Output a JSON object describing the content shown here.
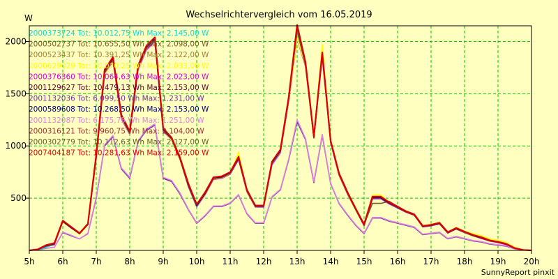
{
  "chart_data": {
    "type": "line",
    "title": "Wechselrichtervergleich vom 16.05.2019",
    "ylabel": "W",
    "footer": "SunnyReport pinxit",
    "xlim": [
      5,
      20
    ],
    "ylim": [
      0,
      2150
    ],
    "xticks": [
      "5h",
      "6h",
      "7h",
      "8h",
      "9h",
      "10h",
      "11h",
      "12h",
      "13h",
      "14h",
      "15h",
      "16h",
      "17h",
      "18h",
      "19h",
      "20h"
    ],
    "yticks": [
      500,
      1000,
      1500,
      2000
    ],
    "grid": true,
    "legend_position": "top-left",
    "x": [
      5.0,
      5.25,
      5.5,
      5.75,
      6.0,
      6.25,
      6.5,
      6.75,
      7.0,
      7.25,
      7.5,
      7.75,
      8.0,
      8.25,
      8.5,
      8.75,
      9.0,
      9.25,
      9.5,
      9.75,
      10.0,
      10.25,
      10.5,
      10.75,
      11.0,
      11.25,
      11.5,
      11.75,
      12.0,
      12.25,
      12.5,
      12.75,
      13.0,
      13.25,
      13.5,
      13.75,
      14.0,
      14.25,
      14.5,
      14.75,
      15.0,
      15.25,
      15.5,
      15.75,
      16.0,
      16.25,
      16.5,
      16.75,
      17.0,
      17.25,
      17.5,
      17.75,
      18.0,
      18.25,
      18.5,
      18.75,
      19.0,
      19.25,
      19.5,
      19.75,
      20.0
    ],
    "series": [
      {
        "label": "2000373724 Tot: 10.012,75 Wh Max: 2.145,00 W",
        "color": "#00e0e0",
        "values": [
          0,
          5,
          30,
          60,
          280,
          220,
          160,
          250,
          900,
          1700,
          1830,
          1280,
          1120,
          1750,
          1950,
          2000,
          1150,
          1070,
          880,
          620,
          420,
          540,
          690,
          700,
          740,
          880,
          570,
          420,
          420,
          830,
          950,
          1450,
          2100,
          1780,
          1080,
          1880,
          1040,
          730,
          550,
          390,
          240,
          500,
          500,
          450,
          410,
          370,
          340,
          230,
          240,
          260,
          170,
          210,
          175,
          140,
          120,
          90,
          80,
          60,
          20,
          5,
          0
        ]
      },
      {
        "label": "2000502737 Tot: 10.655,50 Wh Max: 2.098,00 W",
        "color": "#7a5a20",
        "values": [
          0,
          10,
          50,
          70,
          280,
          220,
          160,
          250,
          920,
          1720,
          1840,
          1300,
          1140,
          1760,
          1950,
          2030,
          1170,
          1080,
          890,
          640,
          440,
          560,
          700,
          710,
          750,
          880,
          580,
          430,
          430,
          850,
          960,
          1470,
          2098,
          1780,
          1090,
          1880,
          1050,
          740,
          560,
          400,
          250,
          450,
          450,
          470,
          420,
          370,
          340,
          235,
          245,
          260,
          175,
          210,
          180,
          145,
          120,
          95,
          80,
          60,
          20,
          5,
          0
        ]
      },
      {
        "label": "2000523437 Tot: 10.391,25 Wh Max: 2.122,00 W",
        "color": "#a08030",
        "values": [
          0,
          8,
          45,
          65,
          280,
          225,
          165,
          255,
          910,
          1710,
          1835,
          1290,
          1135,
          1755,
          1945,
          2020,
          1165,
          1075,
          885,
          630,
          430,
          550,
          695,
          705,
          745,
          890,
          575,
          425,
          425,
          845,
          955,
          1460,
          2110,
          1790,
          1085,
          1880,
          1045,
          735,
          555,
          395,
          245,
          510,
          510,
          455,
          415,
          372,
          342,
          232,
          242,
          258,
          172,
          212,
          178,
          150,
          130,
          100,
          85,
          65,
          25,
          5,
          0
        ]
      },
      {
        "label": "2000629029 Tot: 10.070,25 Wh Max: 2.033,00 W",
        "color": "#ffff00",
        "values": [
          0,
          6,
          40,
          60,
          270,
          215,
          155,
          245,
          890,
          1690,
          1820,
          1270,
          1115,
          1740,
          1930,
          2033,
          1150,
          1060,
          870,
          620,
          420,
          535,
          685,
          695,
          735,
          940,
          565,
          420,
          420,
          830,
          945,
          1440,
          2030,
          1770,
          1075,
          1970,
          1040,
          725,
          545,
          385,
          240,
          530,
          530,
          460,
          420,
          380,
          345,
          235,
          250,
          270,
          175,
          220,
          185,
          160,
          140,
          110,
          100,
          75,
          30,
          5,
          0
        ]
      },
      {
        "label": "2000376360 Tot: 10.064,63 Wh Max: 2.023,00 W",
        "color": "#e000e0",
        "values": [
          0,
          5,
          35,
          55,
          275,
          215,
          160,
          250,
          880,
          1690,
          1810,
          1260,
          1110,
          1730,
          1920,
          2000,
          1140,
          1060,
          870,
          610,
          415,
          530,
          680,
          690,
          730,
          870,
          560,
          415,
          415,
          820,
          935,
          1430,
          2023,
          1760,
          1075,
          1850,
          1030,
          720,
          540,
          385,
          235,
          495,
          495,
          445,
          405,
          365,
          335,
          225,
          235,
          255,
          165,
          205,
          170,
          140,
          115,
          90,
          75,
          55,
          20,
          5,
          0
        ]
      },
      {
        "label": "2001129627 Tot: 10.479,13 Wh Max: 2.153,00 W",
        "color": "#600030",
        "values": [
          0,
          10,
          50,
          70,
          285,
          225,
          165,
          255,
          920,
          1730,
          1850,
          1300,
          1140,
          1770,
          1960,
          2040,
          1170,
          1080,
          890,
          640,
          440,
          555,
          700,
          710,
          750,
          900,
          580,
          430,
          430,
          850,
          965,
          1470,
          2153,
          1800,
          1090,
          1890,
          1050,
          740,
          560,
          400,
          250,
          515,
          515,
          460,
          420,
          375,
          345,
          235,
          245,
          265,
          175,
          215,
          180,
          145,
          125,
          95,
          80,
          60,
          20,
          5,
          0
        ]
      },
      {
        "label": "2001132036 Tot: 6.099,50 Wh Max: 1.231,00 W",
        "color": "#7030a0",
        "values": [
          0,
          5,
          20,
          30,
          170,
          140,
          110,
          160,
          500,
          1000,
          1090,
          780,
          690,
          1040,
          1150,
          1200,
          690,
          660,
          540,
          390,
          260,
          330,
          420,
          420,
          450,
          530,
          350,
          260,
          260,
          510,
          580,
          870,
          1231,
          1060,
          650,
          1100,
          640,
          450,
          340,
          240,
          160,
          310,
          310,
          280,
          260,
          240,
          220,
          150,
          160,
          170,
          110,
          130,
          110,
          90,
          80,
          60,
          50,
          40,
          15,
          5,
          0
        ]
      },
      {
        "label": "2000589608 Tot: 10.268,50 Wh Max: 2.153,00 W",
        "color": "#000080",
        "values": [
          0,
          8,
          45,
          65,
          280,
          220,
          160,
          250,
          905,
          1720,
          1840,
          1285,
          1130,
          1760,
          1950,
          2030,
          1160,
          1075,
          885,
          630,
          430,
          545,
          695,
          705,
          745,
          885,
          575,
          425,
          425,
          840,
          955,
          1460,
          2153,
          1790,
          1085,
          1885,
          1045,
          735,
          555,
          395,
          245,
          505,
          505,
          455,
          415,
          372,
          342,
          232,
          242,
          260,
          172,
          210,
          178,
          145,
          120,
          92,
          80,
          60,
          20,
          5,
          0
        ]
      },
      {
        "label": "2001132087 Tot: 6.175,75 Wh Max: 1.251,00 W",
        "color": "#e080e0",
        "values": [
          0,
          5,
          20,
          30,
          175,
          145,
          110,
          165,
          510,
          1010,
          1100,
          790,
          700,
          1050,
          1160,
          1210,
          700,
          670,
          550,
          395,
          265,
          335,
          425,
          425,
          455,
          535,
          355,
          265,
          265,
          515,
          585,
          880,
          1251,
          1070,
          660,
          1110,
          645,
          455,
          345,
          245,
          165,
          315,
          315,
          285,
          265,
          245,
          225,
          155,
          165,
          175,
          115,
          135,
          115,
          95,
          85,
          65,
          55,
          45,
          15,
          5,
          0
        ]
      },
      {
        "label": "2000316121 Tot: 9.960,75 Wh Max: 2.104,00 W",
        "color": "#a03030",
        "values": [
          0,
          6,
          40,
          60,
          275,
          215,
          160,
          248,
          895,
          1700,
          1825,
          1275,
          1120,
          1745,
          1935,
          2010,
          1150,
          1065,
          875,
          620,
          425,
          540,
          688,
          698,
          738,
          878,
          568,
          420,
          420,
          835,
          948,
          1450,
          2104,
          1775,
          1078,
          1875,
          1040,
          728,
          548,
          390,
          240,
          500,
          500,
          450,
          410,
          368,
          338,
          228,
          238,
          255,
          168,
          205,
          172,
          140,
          118,
          90,
          78,
          58,
          20,
          5,
          0
        ]
      },
      {
        "label": "2000302779 Tot: 10.112,63 Wh Max: 2.127,00 W",
        "color": "#606020",
        "values": [
          0,
          7,
          42,
          62,
          278,
          218,
          162,
          250,
          900,
          1710,
          1830,
          1280,
          1125,
          1750,
          1940,
          2015,
          1155,
          1068,
          878,
          625,
          428,
          543,
          690,
          700,
          740,
          880,
          570,
          422,
          422,
          838,
          950,
          1455,
          2127,
          1780,
          1080,
          1878,
          1042,
          730,
          550,
          392,
          242,
          502,
          502,
          452,
          412,
          370,
          340,
          230,
          240,
          258,
          170,
          208,
          175,
          142,
          120,
          92,
          80,
          60,
          20,
          5,
          0
        ]
      },
      {
        "label": "2007404187 Tot: 10.281,63 Wh Max: 2.159,00 W",
        "color": "#e00000",
        "values": [
          0,
          10,
          50,
          70,
          285,
          225,
          165,
          255,
          915,
          1730,
          1850,
          1295,
          1140,
          1770,
          1960,
          2040,
          1170,
          1080,
          890,
          640,
          440,
          555,
          700,
          710,
          750,
          895,
          580,
          430,
          430,
          850,
          965,
          1470,
          2159,
          1800,
          1090,
          1895,
          1050,
          740,
          560,
          400,
          250,
          515,
          515,
          460,
          420,
          375,
          345,
          235,
          245,
          265,
          175,
          215,
          180,
          148,
          125,
          95,
          82,
          62,
          22,
          5,
          0
        ]
      }
    ]
  }
}
